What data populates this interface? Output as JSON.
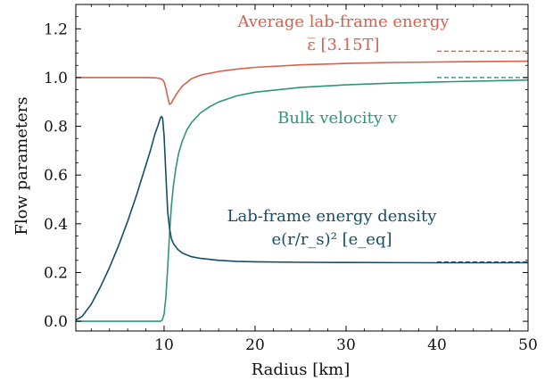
{
  "chart_data": {
    "type": "line",
    "xlabel": "Radius [km]",
    "ylabel": "Flow parameters",
    "xlim": [
      0.3,
      50
    ],
    "ylim": [
      -0.04,
      1.3
    ],
    "xticks": [
      10,
      20,
      30,
      40,
      50
    ],
    "yticks": [
      0.0,
      0.2,
      0.4,
      0.6,
      0.8,
      1.0,
      1.2
    ],
    "x_tick_labels": [
      "10",
      "20",
      "30",
      "40",
      "50"
    ],
    "y_tick_labels": [
      "0.0",
      "0.2",
      "0.4",
      "0.6",
      "0.8",
      "1.0",
      "1.2"
    ],
    "grid": false,
    "series": [
      {
        "key": "energy",
        "color": "#d9604b",
        "x": [
          0.3,
          5,
          8,
          9,
          9.5,
          9.8,
          10,
          10.2,
          10.4,
          10.6,
          10.8,
          11,
          11.5,
          12,
          13,
          14,
          16,
          18,
          20,
          25,
          30,
          35,
          40,
          45,
          50
        ],
        "y": [
          1.0,
          1.0,
          1.0,
          0.999,
          0.997,
          0.992,
          0.982,
          0.955,
          0.92,
          0.89,
          0.895,
          0.91,
          0.94,
          0.965,
          0.995,
          1.01,
          1.025,
          1.035,
          1.042,
          1.052,
          1.058,
          1.062,
          1.064,
          1.066,
          1.067
        ],
        "asymptote": 1.108
      },
      {
        "key": "velocity",
        "color": "#2e9678",
        "x": [
          0.3,
          5,
          9.6,
          9.8,
          10,
          10.2,
          10.4,
          10.6,
          10.8,
          11,
          11.3,
          11.6,
          12,
          12.5,
          13,
          14,
          15,
          16,
          18,
          20,
          25,
          30,
          35,
          40,
          45,
          50
        ],
        "y": [
          0.0,
          0.0,
          0.0,
          0.005,
          0.03,
          0.1,
          0.22,
          0.36,
          0.47,
          0.55,
          0.63,
          0.69,
          0.74,
          0.785,
          0.815,
          0.855,
          0.88,
          0.9,
          0.925,
          0.94,
          0.96,
          0.97,
          0.977,
          0.982,
          0.986,
          0.99
        ],
        "asymptote": 1.0
      },
      {
        "key": "density",
        "color": "#144e68",
        "x": [
          0.3,
          1,
          2,
          3,
          4,
          5,
          6,
          7,
          8,
          8.5,
          9,
          9.3,
          9.6,
          9.75,
          9.85,
          10,
          10.2,
          10.4,
          10.6,
          10.8,
          11,
          11.5,
          12,
          13,
          14,
          16,
          18,
          20,
          25,
          30,
          40,
          50
        ],
        "y": [
          0.005,
          0.02,
          0.07,
          0.14,
          0.22,
          0.31,
          0.41,
          0.52,
          0.64,
          0.7,
          0.77,
          0.8,
          0.835,
          0.84,
          0.83,
          0.76,
          0.6,
          0.45,
          0.38,
          0.34,
          0.32,
          0.295,
          0.28,
          0.265,
          0.258,
          0.25,
          0.246,
          0.244,
          0.242,
          0.241,
          0.24,
          0.24
        ],
        "asymptote": 0.243
      }
    ],
    "annotations": [
      {
        "key": "energy",
        "lines": [
          "Average lab-frame energy",
          "ε̅ [3.15T]"
        ]
      },
      {
        "key": "velocity",
        "lines": [
          "Bulk velocity v"
        ]
      },
      {
        "key": "density",
        "lines": [
          "Lab-frame energy density",
          "e(r/r_s)² [e_eq]"
        ]
      }
    ]
  }
}
